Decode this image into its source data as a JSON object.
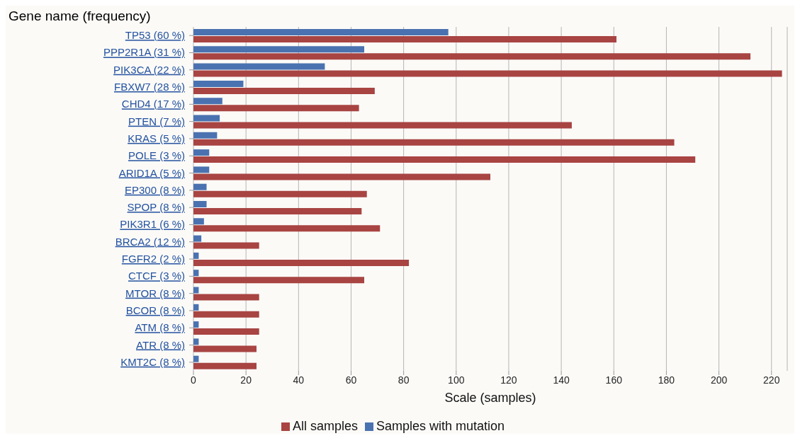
{
  "chart_data": {
    "type": "bar",
    "orientation": "horizontal",
    "title": "Gene name (frequency)",
    "xlabel": "Scale (samples)",
    "categories": [
      "TP53 (60 %)",
      "PPP2R1A (31 %)",
      "PIK3CA (22 %)",
      "FBXW7 (28 %)",
      "CHD4 (17 %)",
      "PTEN (7 %)",
      "KRAS (5 %)",
      "POLE (3 %)",
      "ARID1A (5 %)",
      "EP300 (8 %)",
      "SPOP (8 %)",
      "PIK3R1 (6 %)",
      "BRCA2 (12 %)",
      "FGFR2 (2 %)",
      "CTCF (3 %)",
      "MTOR (8 %)",
      "BCOR (8 %)",
      "ATM (8 %)",
      "ATR (8 %)",
      "KMT2C (8 %)"
    ],
    "series": [
      {
        "name": "Samples with mutation",
        "color": "#4a72b0",
        "values": [
          97,
          65,
          50,
          19,
          11,
          10,
          9,
          6,
          6,
          5,
          5,
          4,
          3,
          2,
          2,
          2,
          2,
          2,
          2,
          2
        ]
      },
      {
        "name": "All samples",
        "color": "#a84442",
        "values": [
          161,
          212,
          224,
          69,
          63,
          144,
          183,
          191,
          113,
          66,
          64,
          71,
          25,
          82,
          65,
          25,
          25,
          25,
          24,
          24
        ]
      }
    ],
    "xlim": [
      0,
      226
    ],
    "xticks": [
      0,
      20,
      40,
      60,
      80,
      100,
      120,
      140,
      160,
      180,
      200,
      220
    ],
    "grid": "x",
    "legend": "bottom"
  }
}
